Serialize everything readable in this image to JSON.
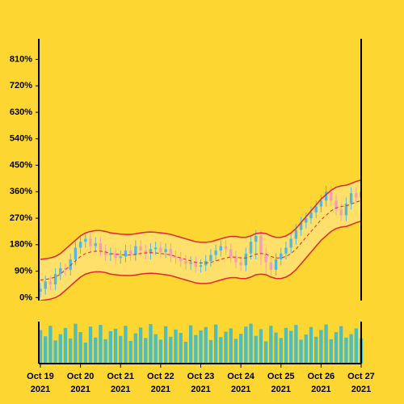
{
  "chart_data": {
    "type": "candlestick",
    "x": [
      0,
      0.125,
      0.25,
      0.375,
      0.5,
      0.625,
      0.75,
      0.875,
      1,
      1.125,
      1.25,
      1.375,
      1.5,
      1.625,
      1.75,
      1.875,
      2,
      2.125,
      2.25,
      2.375,
      2.5,
      2.625,
      2.75,
      2.875,
      3,
      3.125,
      3.25,
      3.375,
      3.5,
      3.625,
      3.75,
      3.875,
      4,
      4.125,
      4.25,
      4.375,
      4.5,
      4.625,
      4.75,
      4.875,
      5,
      5.125,
      5.25,
      5.375,
      5.5,
      5.625,
      5.75,
      5.875,
      6,
      6.125,
      6.25,
      6.375,
      6.5,
      6.625,
      6.75,
      6.875,
      7,
      7.125,
      7.25,
      7.375,
      7.5,
      7.625,
      7.75,
      7.875,
      8
    ],
    "open": [
      20,
      30,
      55,
      45,
      80,
      100,
      95,
      130,
      170,
      190,
      200,
      175,
      185,
      160,
      145,
      150,
      135,
      140,
      160,
      145,
      175,
      160,
      150,
      165,
      170,
      155,
      165,
      140,
      135,
      125,
      115,
      120,
      105,
      110,
      125,
      145,
      160,
      175,
      165,
      140,
      120,
      110,
      150,
      190,
      210,
      150,
      120,
      95,
      130,
      150,
      170,
      200,
      230,
      255,
      270,
      290,
      310,
      330,
      360,
      330,
      300,
      280,
      320,
      355,
      340
    ],
    "high": [
      50,
      75,
      75,
      100,
      120,
      115,
      150,
      190,
      210,
      220,
      220,
      205,
      205,
      180,
      170,
      170,
      160,
      180,
      180,
      195,
      195,
      180,
      185,
      190,
      190,
      185,
      185,
      160,
      155,
      145,
      140,
      140,
      130,
      145,
      165,
      180,
      195,
      195,
      185,
      160,
      140,
      170,
      210,
      230,
      230,
      170,
      140,
      150,
      170,
      190,
      220,
      250,
      275,
      290,
      310,
      330,
      350,
      380,
      380,
      350,
      320,
      340,
      375,
      375,
      380
    ],
    "low": [
      0,
      10,
      25,
      25,
      60,
      75,
      75,
      110,
      150,
      170,
      155,
      155,
      140,
      125,
      125,
      115,
      115,
      120,
      125,
      125,
      140,
      130,
      130,
      145,
      135,
      135,
      120,
      115,
      105,
      95,
      95,
      85,
      85,
      90,
      105,
      125,
      140,
      145,
      120,
      100,
      90,
      90,
      130,
      130,
      110,
      80,
      75,
      75,
      110,
      130,
      150,
      180,
      210,
      235,
      250,
      270,
      290,
      310,
      310,
      280,
      260,
      260,
      300,
      320,
      320
    ],
    "close": [
      30,
      55,
      45,
      80,
      100,
      95,
      130,
      170,
      190,
      200,
      175,
      185,
      160,
      145,
      150,
      135,
      140,
      160,
      145,
      175,
      160,
      150,
      165,
      170,
      155,
      165,
      140,
      135,
      125,
      115,
      120,
      105,
      110,
      125,
      145,
      160,
      175,
      165,
      140,
      120,
      110,
      150,
      190,
      210,
      150,
      120,
      95,
      130,
      150,
      170,
      200,
      230,
      255,
      270,
      290,
      310,
      330,
      360,
      330,
      300,
      280,
      320,
      355,
      340,
      360
    ],
    "up_color": "#4fb8e8",
    "down_color": "#f2a0b8",
    "bands": [
      {
        "color": "#e3262b",
        "values": [
          130,
          132,
          135,
          140,
          150,
          165,
          180,
          195,
          210,
          220,
          225,
          228,
          228,
          225,
          220,
          218,
          216,
          215,
          215,
          217,
          220,
          222,
          223,
          222,
          220,
          218,
          215,
          210,
          205,
          200,
          195,
          190,
          188,
          188,
          190,
          195,
          200,
          205,
          208,
          208,
          205,
          205,
          210,
          218,
          220,
          218,
          210,
          205,
          205,
          210,
          220,
          235,
          255,
          275,
          295,
          315,
          335,
          350,
          365,
          375,
          380,
          382,
          388,
          395,
          400
        ]
      },
      {
        "color": "#e3262b",
        "dashed": true,
        "values": [
          60,
          62,
          65,
          70,
          80,
          95,
          110,
          125,
          140,
          150,
          155,
          158,
          158,
          155,
          150,
          148,
          146,
          145,
          145,
          147,
          150,
          152,
          153,
          152,
          150,
          148,
          145,
          140,
          135,
          130,
          125,
          120,
          118,
          118,
          120,
          125,
          130,
          135,
          138,
          138,
          135,
          135,
          140,
          148,
          150,
          148,
          140,
          135,
          135,
          140,
          150,
          165,
          185,
          205,
          225,
          245,
          265,
          280,
          295,
          305,
          310,
          312,
          318,
          325,
          330
        ]
      },
      {
        "color": "#e3262b",
        "values": [
          -10,
          -8,
          -5,
          0,
          10,
          25,
          40,
          55,
          70,
          80,
          85,
          88,
          88,
          85,
          80,
          78,
          76,
          75,
          75,
          77,
          80,
          82,
          83,
          82,
          80,
          78,
          75,
          70,
          65,
          60,
          55,
          50,
          48,
          48,
          50,
          55,
          60,
          65,
          68,
          68,
          65,
          65,
          70,
          78,
          80,
          78,
          70,
          65,
          65,
          70,
          80,
          95,
          115,
          135,
          155,
          175,
          195,
          210,
          225,
          235,
          240,
          242,
          248,
          255,
          260
        ]
      }
    ],
    "band_fill": "#ffe27a",
    "volume": {
      "color": "#4dbdbd",
      "ylim": [
        0,
        100
      ],
      "values": [
        80,
        65,
        90,
        55,
        70,
        85,
        60,
        95,
        75,
        50,
        88,
        62,
        92,
        58,
        77,
        83,
        66,
        90,
        54,
        72,
        86,
        61,
        94,
        70,
        57,
        89,
        64,
        81,
        73,
        52,
        91,
        68,
        79,
        87,
        56,
        93,
        63,
        76,
        84,
        59,
        71,
        88,
        95,
        66,
        82,
        53,
        90,
        74,
        61,
        85,
        78,
        92,
        57,
        69,
        87,
        64,
        80,
        93,
        58,
        75,
        89,
        62,
        70,
        84,
        60
      ]
    },
    "xlim": [
      -0.04,
      8.0
    ],
    "ylim": [
      -10,
      880
    ],
    "yticks": [
      {
        "value": 0,
        "label": "0%"
      },
      {
        "value": 90,
        "label": "90%"
      },
      {
        "value": 180,
        "label": "180%"
      },
      {
        "value": 270,
        "label": "270%"
      },
      {
        "value": 360,
        "label": "360%"
      },
      {
        "value": 450,
        "label": "450%"
      },
      {
        "value": 540,
        "label": "540%"
      },
      {
        "value": 630,
        "label": "630%"
      },
      {
        "value": 720,
        "label": "720%"
      },
      {
        "value": 810,
        "label": "810%"
      }
    ],
    "xticks": [
      {
        "value": 0,
        "label": "Oct 19",
        "year": "2021"
      },
      {
        "value": 1,
        "label": "Oct 20",
        "year": "2021"
      },
      {
        "value": 2,
        "label": "Oct 21",
        "year": "2021"
      },
      {
        "value": 3,
        "label": "Oct 22",
        "year": "2021"
      },
      {
        "value": 4,
        "label": "Oct 23",
        "year": "2021"
      },
      {
        "value": 5,
        "label": "Oct 24",
        "year": "2021"
      },
      {
        "value": 6,
        "label": "Oct 25",
        "year": "2021"
      },
      {
        "value": 7,
        "label": "Oct 26",
        "year": "2021"
      },
      {
        "value": 8,
        "label": "Oct 27",
        "year": "2021"
      }
    ]
  }
}
